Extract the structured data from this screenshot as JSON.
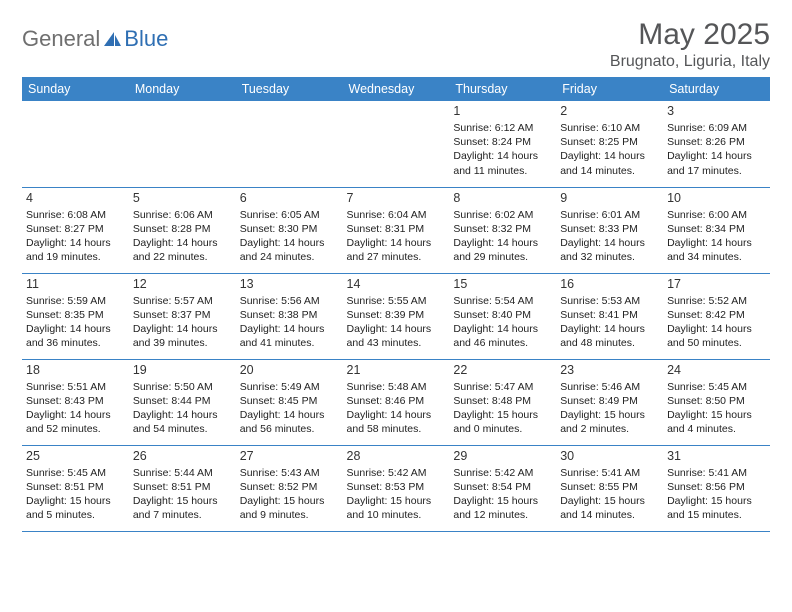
{
  "logo": {
    "text1": "General",
    "text2": "Blue"
  },
  "title": "May 2025",
  "subtitle": "Brugnato, Liguria, Italy",
  "header_bg": "#3a83c6",
  "border_color": "#3a83c6",
  "dayNames": [
    "Sunday",
    "Monday",
    "Tuesday",
    "Wednesday",
    "Thursday",
    "Friday",
    "Saturday"
  ],
  "weeks": [
    [
      null,
      null,
      null,
      null,
      {
        "n": "1",
        "sr": "6:12 AM",
        "ss": "8:24 PM",
        "dl": "14 hours and 11 minutes."
      },
      {
        "n": "2",
        "sr": "6:10 AM",
        "ss": "8:25 PM",
        "dl": "14 hours and 14 minutes."
      },
      {
        "n": "3",
        "sr": "6:09 AM",
        "ss": "8:26 PM",
        "dl": "14 hours and 17 minutes."
      }
    ],
    [
      {
        "n": "4",
        "sr": "6:08 AM",
        "ss": "8:27 PM",
        "dl": "14 hours and 19 minutes."
      },
      {
        "n": "5",
        "sr": "6:06 AM",
        "ss": "8:28 PM",
        "dl": "14 hours and 22 minutes."
      },
      {
        "n": "6",
        "sr": "6:05 AM",
        "ss": "8:30 PM",
        "dl": "14 hours and 24 minutes."
      },
      {
        "n": "7",
        "sr": "6:04 AM",
        "ss": "8:31 PM",
        "dl": "14 hours and 27 minutes."
      },
      {
        "n": "8",
        "sr": "6:02 AM",
        "ss": "8:32 PM",
        "dl": "14 hours and 29 minutes."
      },
      {
        "n": "9",
        "sr": "6:01 AM",
        "ss": "8:33 PM",
        "dl": "14 hours and 32 minutes."
      },
      {
        "n": "10",
        "sr": "6:00 AM",
        "ss": "8:34 PM",
        "dl": "14 hours and 34 minutes."
      }
    ],
    [
      {
        "n": "11",
        "sr": "5:59 AM",
        "ss": "8:35 PM",
        "dl": "14 hours and 36 minutes."
      },
      {
        "n": "12",
        "sr": "5:57 AM",
        "ss": "8:37 PM",
        "dl": "14 hours and 39 minutes."
      },
      {
        "n": "13",
        "sr": "5:56 AM",
        "ss": "8:38 PM",
        "dl": "14 hours and 41 minutes."
      },
      {
        "n": "14",
        "sr": "5:55 AM",
        "ss": "8:39 PM",
        "dl": "14 hours and 43 minutes."
      },
      {
        "n": "15",
        "sr": "5:54 AM",
        "ss": "8:40 PM",
        "dl": "14 hours and 46 minutes."
      },
      {
        "n": "16",
        "sr": "5:53 AM",
        "ss": "8:41 PM",
        "dl": "14 hours and 48 minutes."
      },
      {
        "n": "17",
        "sr": "5:52 AM",
        "ss": "8:42 PM",
        "dl": "14 hours and 50 minutes."
      }
    ],
    [
      {
        "n": "18",
        "sr": "5:51 AM",
        "ss": "8:43 PM",
        "dl": "14 hours and 52 minutes."
      },
      {
        "n": "19",
        "sr": "5:50 AM",
        "ss": "8:44 PM",
        "dl": "14 hours and 54 minutes."
      },
      {
        "n": "20",
        "sr": "5:49 AM",
        "ss": "8:45 PM",
        "dl": "14 hours and 56 minutes."
      },
      {
        "n": "21",
        "sr": "5:48 AM",
        "ss": "8:46 PM",
        "dl": "14 hours and 58 minutes."
      },
      {
        "n": "22",
        "sr": "5:47 AM",
        "ss": "8:48 PM",
        "dl": "15 hours and 0 minutes."
      },
      {
        "n": "23",
        "sr": "5:46 AM",
        "ss": "8:49 PM",
        "dl": "15 hours and 2 minutes."
      },
      {
        "n": "24",
        "sr": "5:45 AM",
        "ss": "8:50 PM",
        "dl": "15 hours and 4 minutes."
      }
    ],
    [
      {
        "n": "25",
        "sr": "5:45 AM",
        "ss": "8:51 PM",
        "dl": "15 hours and 5 minutes."
      },
      {
        "n": "26",
        "sr": "5:44 AM",
        "ss": "8:51 PM",
        "dl": "15 hours and 7 minutes."
      },
      {
        "n": "27",
        "sr": "5:43 AM",
        "ss": "8:52 PM",
        "dl": "15 hours and 9 minutes."
      },
      {
        "n": "28",
        "sr": "5:42 AM",
        "ss": "8:53 PM",
        "dl": "15 hours and 10 minutes."
      },
      {
        "n": "29",
        "sr": "5:42 AM",
        "ss": "8:54 PM",
        "dl": "15 hours and 12 minutes."
      },
      {
        "n": "30",
        "sr": "5:41 AM",
        "ss": "8:55 PM",
        "dl": "15 hours and 14 minutes."
      },
      {
        "n": "31",
        "sr": "5:41 AM",
        "ss": "8:56 PM",
        "dl": "15 hours and 15 minutes."
      }
    ]
  ],
  "labels": {
    "sunrise": "Sunrise:",
    "sunset": "Sunset:",
    "daylight": "Daylight:"
  }
}
